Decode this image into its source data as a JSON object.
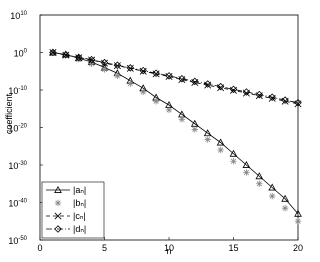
{
  "chart_data": {
    "type": "line",
    "log_y": true,
    "xlabel": "n",
    "ylabel": "coefficient",
    "x": [
      1,
      2,
      3,
      4,
      5,
      6,
      7,
      8,
      9,
      10,
      11,
      12,
      13,
      14,
      15,
      16,
      17,
      18,
      19,
      20
    ],
    "xlim": [
      0,
      20
    ],
    "xticks": [
      0,
      5,
      10,
      15,
      20
    ],
    "ylim": [
      1e-50,
      10000000000.0
    ],
    "yticks": [
      {
        "value": 10000000000.0,
        "label": "10",
        "exponent": "10"
      },
      {
        "value": 1,
        "label": "10",
        "exponent": "0"
      },
      {
        "value": 1e-10,
        "label": "10",
        "exponent": "-10"
      },
      {
        "value": 1e-20,
        "label": "10",
        "exponent": "-20"
      },
      {
        "value": 1e-30,
        "label": "10",
        "exponent": "-30"
      },
      {
        "value": 1e-40,
        "label": "10",
        "exponent": "-40"
      },
      {
        "value": 1e-50,
        "label": "10",
        "exponent": "-50"
      }
    ],
    "legend": "lower left",
    "series": [
      {
        "name": "|aₙ|",
        "color": "#000000",
        "dash": "none",
        "marker": "triangle",
        "values": [
          1,
          0.3,
          0.03,
          0.003,
          0.0001,
          3e-06,
          3e-08,
          3e-10,
          1e-12,
          1e-14,
          3e-17,
          1e-19,
          3e-22,
          1e-24,
          1e-27,
          1e-30,
          1e-33,
          1e-36,
          1e-39,
          1e-43
        ]
      },
      {
        "name": "|bₙ|",
        "color": "#888888",
        "dash": "none",
        "marker": "star",
        "values": [
          1,
          0.2,
          0.015,
          0.001,
          3e-05,
          6e-07,
          5e-09,
          3e-11,
          1e-13,
          5e-16,
          1.5e-18,
          3e-21,
          6e-24,
          1e-26,
          1e-29,
          1e-32,
          1e-35,
          5e-39,
          3e-42,
          1e-45
        ]
      },
      {
        "name": "|cₙ|",
        "color": "#000000",
        "dash": "4 3",
        "marker": "cross",
        "values": [
          1,
          0.2,
          0.04,
          0.01,
          0.0015,
          0.0003,
          6e-05,
          1e-05,
          2e-06,
          4e-07,
          6e-08,
          1e-08,
          2e-09,
          4e-10,
          8e-11,
          1.5e-11,
          3e-12,
          6e-13,
          1e-13,
          2e-14
        ]
      },
      {
        "name": "|dₙ|",
        "color": "#000000",
        "dash": "6 2 1 2",
        "marker": "diamond",
        "values": [
          1,
          0.25,
          0.05,
          0.012,
          0.002,
          0.0004,
          8e-05,
          1.5e-05,
          3e-06,
          6e-07,
          1e-07,
          2e-08,
          4e-09,
          8e-10,
          1.5e-10,
          3e-11,
          6e-12,
          1.2e-12,
          2e-13,
          4e-14
        ]
      }
    ]
  }
}
